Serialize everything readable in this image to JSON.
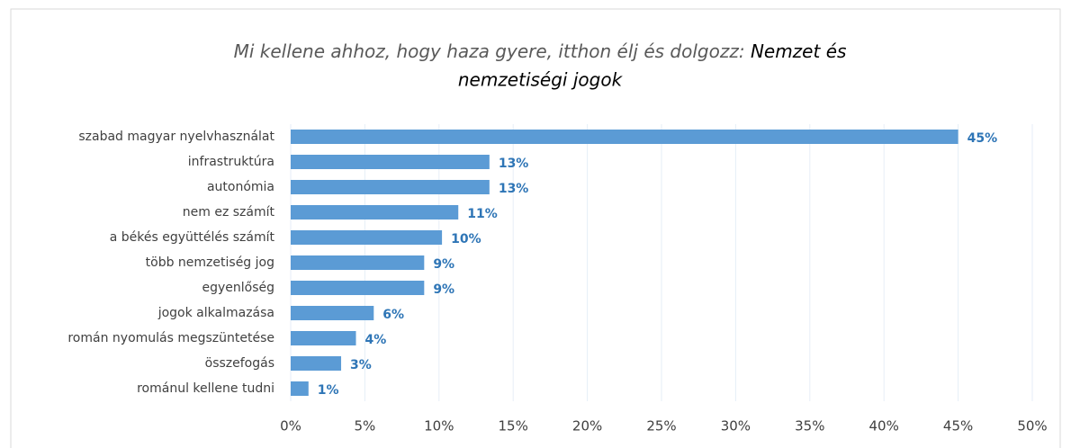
{
  "chart_data": {
    "type": "barh",
    "title_parts": [
      "Mi kellene ahhoz, hogy haza gyere, itthon élj és dolgozz:",
      "Nemzet és",
      "nemzetiségi jogok"
    ],
    "categories": [
      "szabad magyar nyelvhasználat",
      "infrastruktúra",
      "autonómia",
      "nem ez számít",
      "a békés együttélés számít",
      "több nemzetiség jog",
      "egyenlőség",
      "jogok alkalmazása",
      "román nyomulás megszüntetése",
      "összefogás",
      "románul kellene tudni"
    ],
    "values": [
      45,
      13.4,
      13.4,
      11.3,
      10.2,
      9,
      9,
      5.6,
      4.4,
      3.4,
      1.2
    ],
    "value_labels": [
      "45%",
      "13%",
      "13%",
      "11%",
      "10%",
      "9%",
      "9%",
      "6%",
      "4%",
      "3%",
      "1%"
    ],
    "color": "#5b9bd5",
    "xlim": [
      0,
      50
    ],
    "xticks": [
      {
        "value": 0,
        "label": "0%"
      },
      {
        "value": 5,
        "label": "5%"
      },
      {
        "value": 10,
        "label": "10%"
      },
      {
        "value": 15,
        "label": "15%"
      },
      {
        "value": 20,
        "label": "20%"
      },
      {
        "value": 25,
        "label": "25%"
      },
      {
        "value": 30,
        "label": "30%"
      },
      {
        "value": 35,
        "label": "35%"
      },
      {
        "value": 40,
        "label": "40%"
      },
      {
        "value": 45,
        "label": "45%"
      },
      {
        "value": 50,
        "label": "50%"
      }
    ],
    "grid": true
  }
}
